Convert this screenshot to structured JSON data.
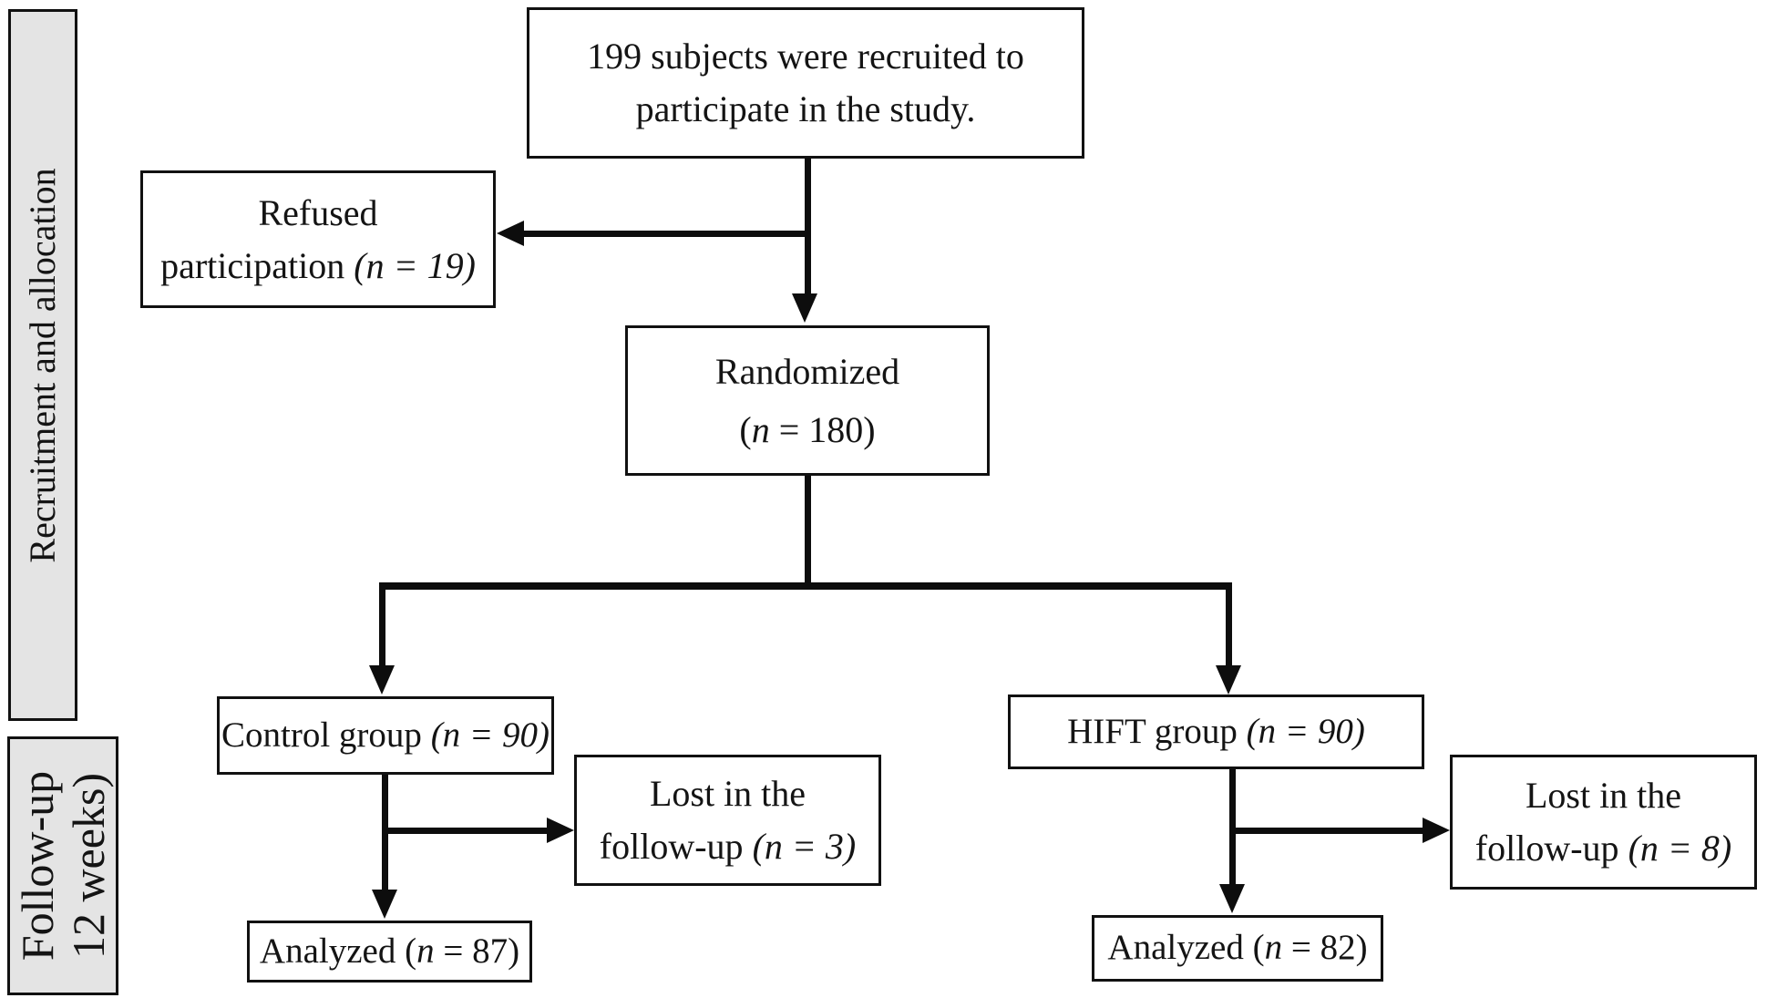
{
  "figure": {
    "type": "consort-flow-diagram",
    "background": "#ffffff",
    "line_color": "#0d0d0d",
    "band_fill": "#e4e4e4",
    "box_border_color": "#111111"
  },
  "bands": {
    "recruitment": {
      "text": "Recruitment and allocation",
      "lines": [
        [
          {
            "t": "Recruitment and allocation"
          }
        ]
      ]
    },
    "followup": {
      "text": "Follow-up 12 weeks)",
      "lines": [
        [
          {
            "t": "Follow-up"
          }
        ],
        [
          {
            "t": "12 weeks)"
          }
        ]
      ]
    }
  },
  "boxes": {
    "recruited": {
      "text": "199 subjects were recruited to participate in the study.",
      "n": 199,
      "lines": [
        [
          {
            "t": "199 subjects were recruited to"
          }
        ],
        [
          {
            "t": "participate in the study."
          }
        ]
      ]
    },
    "refused": {
      "text": "Refused participation (n = 19)",
      "n": 19,
      "lines": [
        [
          {
            "t": "Refused"
          }
        ],
        [
          {
            "t": "participation "
          },
          {
            "t": "(n = 19)",
            "i": true
          }
        ]
      ]
    },
    "randomized": {
      "text": "Randomized (n = 180)",
      "n": 180,
      "lines": [
        [
          {
            "t": "Randomized"
          }
        ],
        [
          {
            "t": "("
          },
          {
            "t": "n",
            "i": true
          },
          {
            "t": " = 180)"
          }
        ]
      ]
    },
    "control": {
      "text": "Control group (n = 90)",
      "n": 90,
      "lines": [
        [
          {
            "t": "Control group "
          },
          {
            "t": "(n = 90)",
            "i": true
          }
        ]
      ]
    },
    "hift": {
      "text": "HIFT group (n = 90)",
      "n": 90,
      "lines": [
        [
          {
            "t": "HIFT group "
          },
          {
            "t": "(n = 90)",
            "i": true
          }
        ]
      ]
    },
    "lost_control": {
      "text": "Lost in the follow-up (n = 3)",
      "n": 3,
      "lines": [
        [
          {
            "t": "Lost in the"
          }
        ],
        [
          {
            "t": "follow-up "
          },
          {
            "t": "(n = 3)",
            "i": true
          }
        ]
      ]
    },
    "lost_hift": {
      "text": "Lost in the follow-up (n = 8)",
      "n": 8,
      "lines": [
        [
          {
            "t": "Lost in the"
          }
        ],
        [
          {
            "t": "follow-up "
          },
          {
            "t": "(n = 8)",
            "i": true
          }
        ]
      ]
    },
    "analyzed_control": {
      "text": "Analyzed (n = 87)",
      "n": 87,
      "lines": [
        [
          {
            "t": "Analyzed ("
          },
          {
            "t": "n",
            "i": true
          },
          {
            "t": " = 87)"
          }
        ]
      ]
    },
    "analyzed_hift": {
      "text": "Analyzed (n = 82)",
      "n": 82,
      "lines": [
        [
          {
            "t": "Analyzed ("
          },
          {
            "t": "n",
            "i": true
          },
          {
            "t": " = 82)"
          }
        ]
      ]
    }
  }
}
